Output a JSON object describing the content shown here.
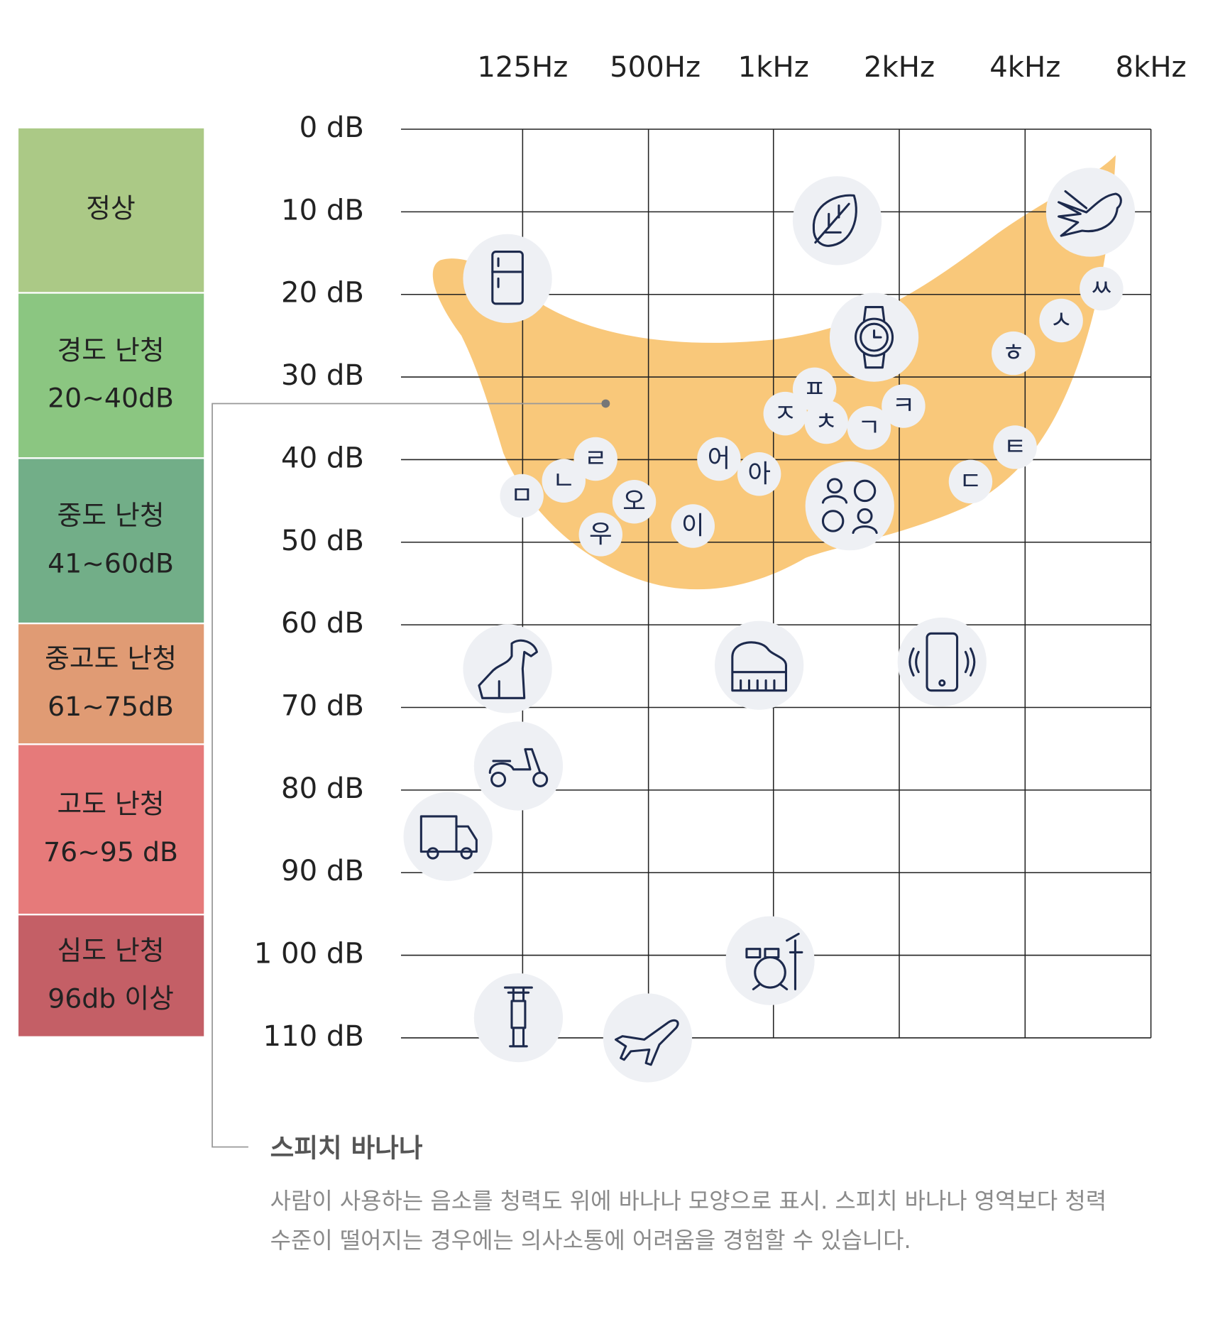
{
  "frequencies": [
    "125Hz",
    "500Hz",
    "1kHz",
    "2kHz",
    "4kHz",
    "8kHz"
  ],
  "db_levels": [
    "0 dB",
    "10 dB",
    "20 dB",
    "30 dB",
    "40 dB",
    "50 dB",
    "60 dB",
    "70 dB",
    "80 dB",
    "90 dB",
    "1 00 dB",
    "110 dB"
  ],
  "hearing_levels": [
    {
      "name": "정상"
    },
    {
      "name": "경도 난청",
      "range": "20~40dB"
    },
    {
      "name": "중도 난청",
      "range": "41~60dB"
    },
    {
      "name": "중고도 난청",
      "range": "61~75dB"
    },
    {
      "name": "고도 난청",
      "range": "76~95 dB"
    },
    {
      "name": "심도 난청",
      "range": "96db 이상"
    }
  ],
  "phonemes": [
    "ㅁ",
    "ㄴ",
    "ㄹ",
    "오",
    "우",
    "이",
    "어",
    "아",
    "ㅈ",
    "ㅍ",
    "ㅊ",
    "ㄱ",
    "ㅋ",
    "ㅎ",
    "ㅅ",
    "ㅆ",
    "ㅌ",
    "ㄷ"
  ],
  "speech_banana": {
    "title": "스피치 바나나",
    "description": [
      "사람이 사용하는 음소를 청력도 위에 바나나 모양으로 표시. 스피치 바나나 영역보다 청력",
      "수준이 떨어지는 경우에는 의사소통에 어려움을 경험할 수 있습니다."
    ]
  }
}
